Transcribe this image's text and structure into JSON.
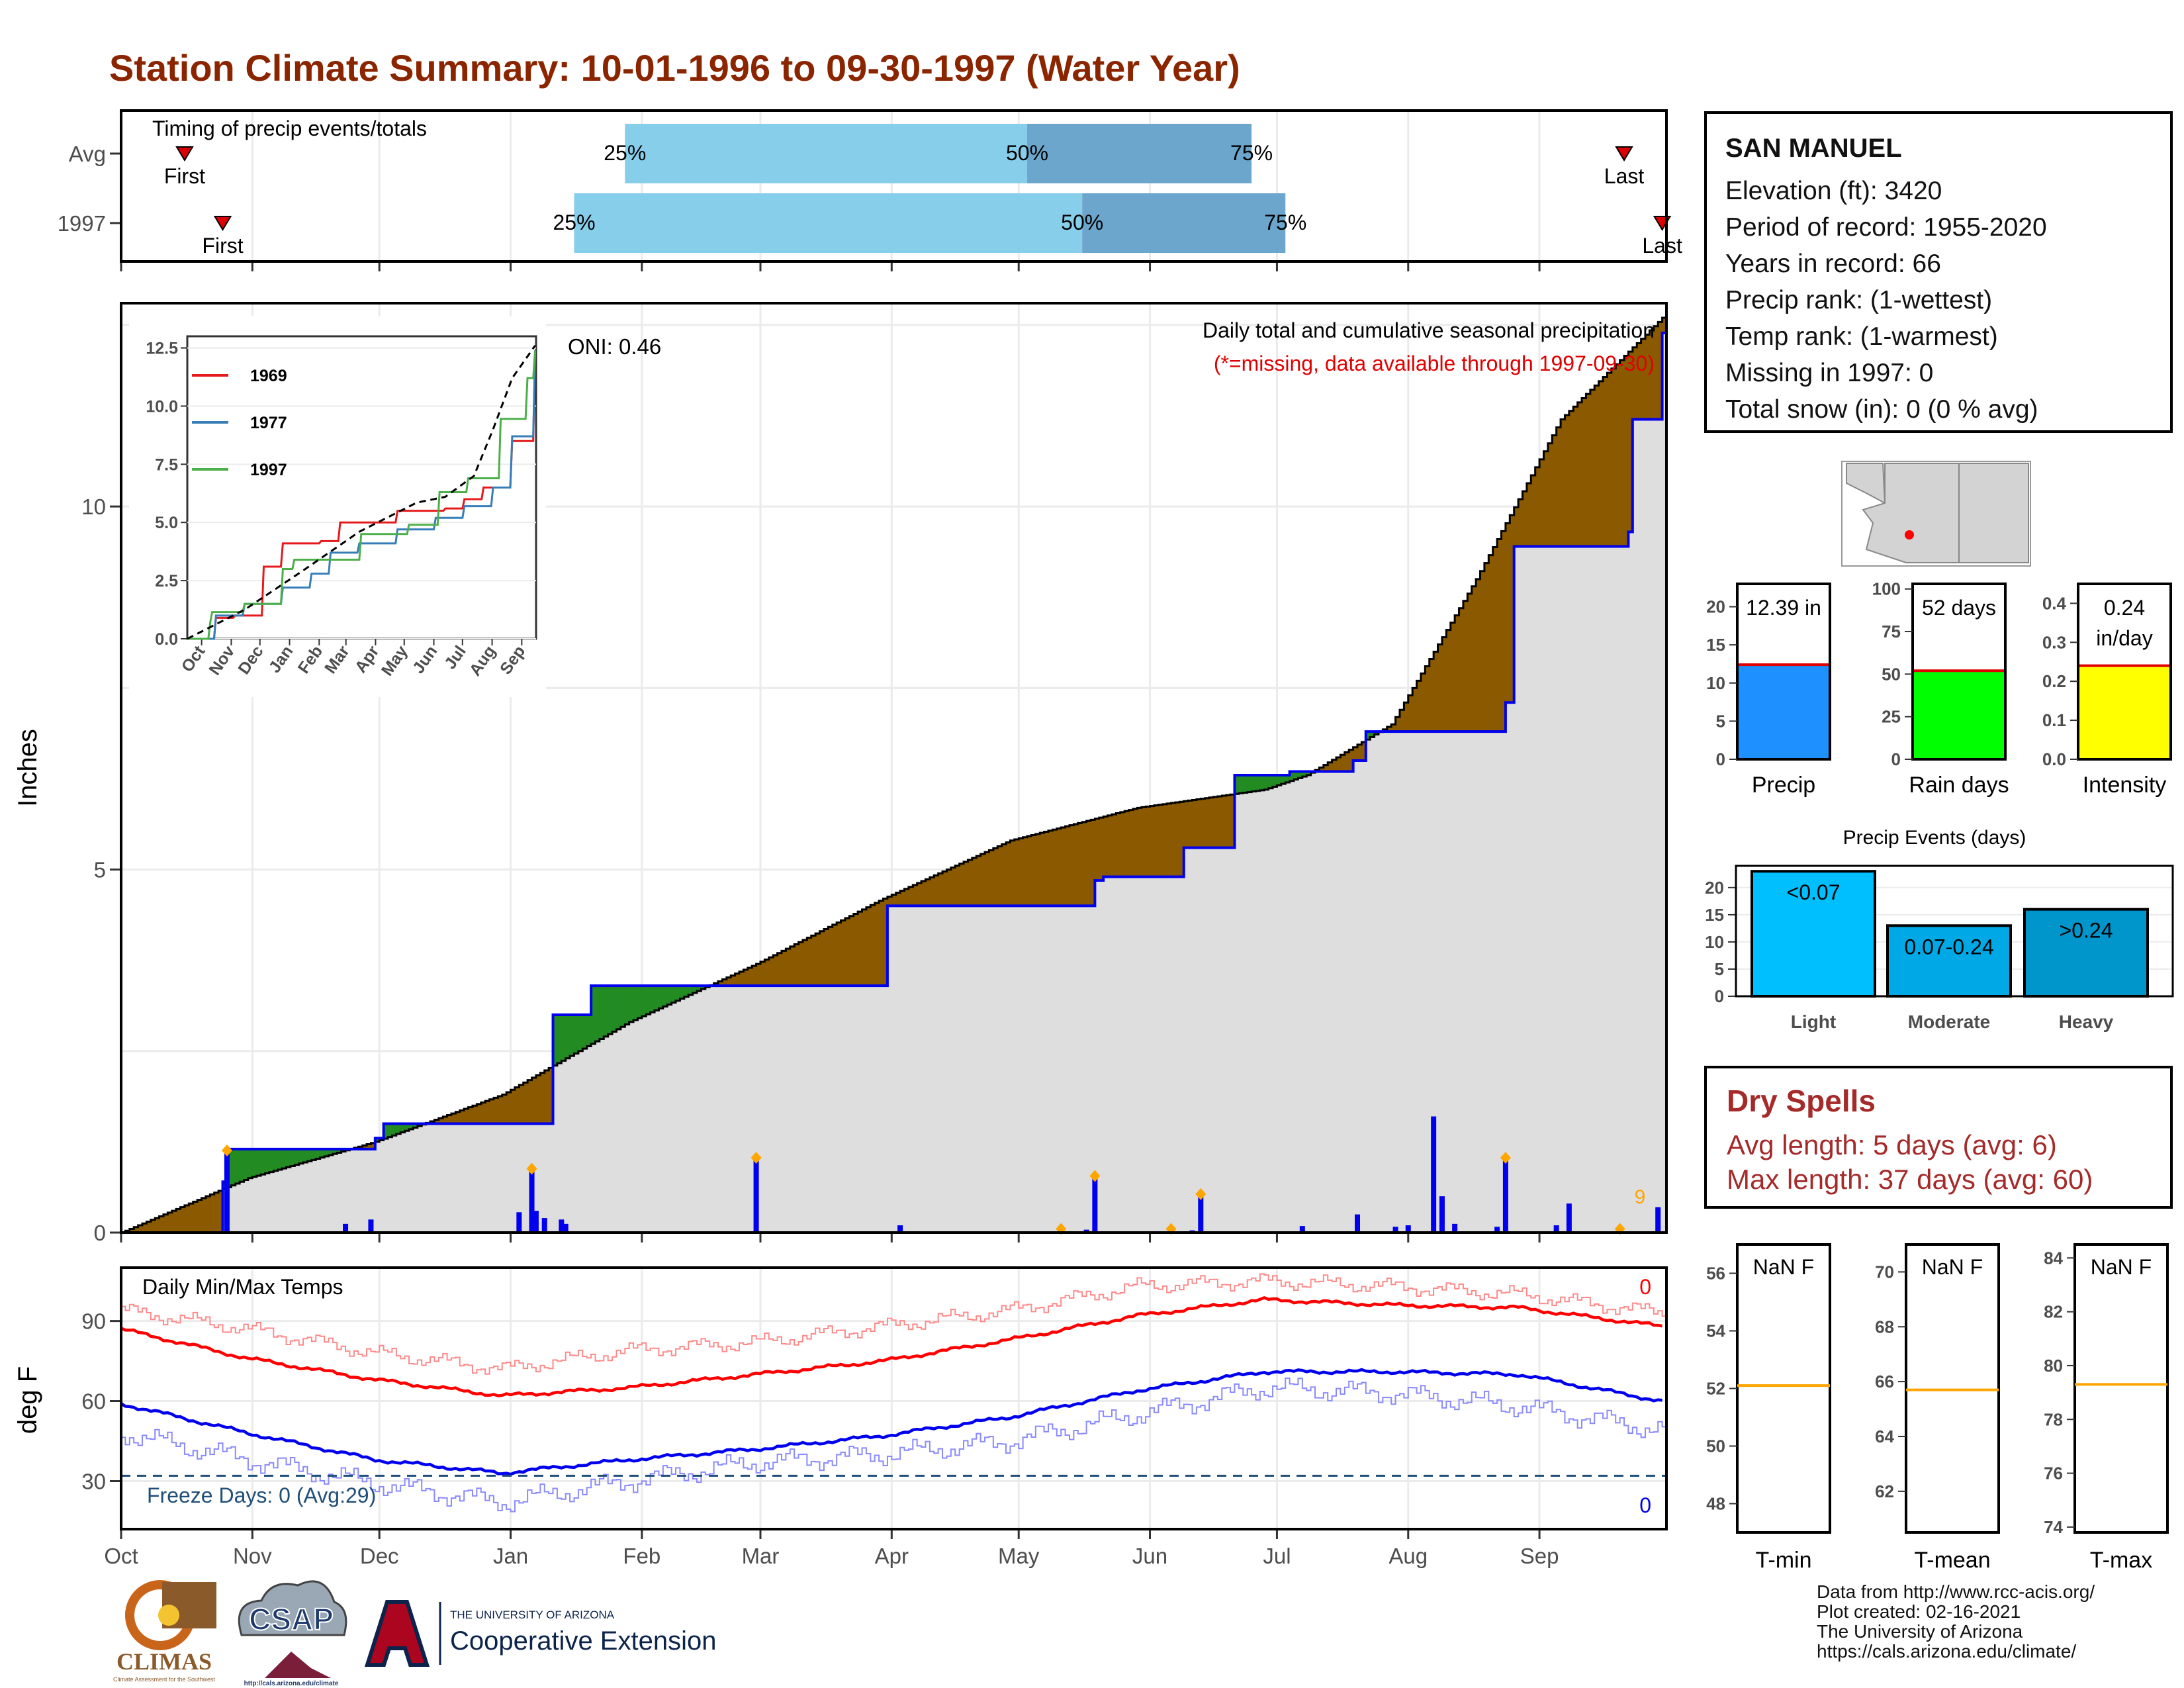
{
  "title": "Station Climate Summary: 10-01-1996 to 09-30-1997 (Water Year)",
  "colors": {
    "title": "#8B2500",
    "timing_light": "#87CEEB",
    "timing_dark": "#6CA6CD",
    "surplus": "#228B22",
    "deficit": "#8B5A00",
    "observed_line": "#0000EE",
    "avg_line": "#000000",
    "bars": "#0000EE",
    "highlight": "#FFA500",
    "tmax_avg": "#FF0000",
    "tmin_avg": "#0000EE",
    "freeze_line": "#1F4E79",
    "dry_text": "#A52A2A"
  },
  "timing": {
    "title": "Timing of precip events/totals",
    "rows": [
      {
        "label": "Avg",
        "first_day": 15,
        "last_day": 355,
        "q25": 119,
        "q50": 214,
        "q75": 267,
        "first_label": "First",
        "last_label": "Last",
        "q25_label": "25%",
        "q50_label": "50%",
        "q75_label": "75%"
      },
      {
        "label": "1997",
        "first_day": 24,
        "last_day": 364,
        "q25": 107,
        "q50": 227,
        "q75": 275,
        "first_label": "First",
        "last_label": "Last",
        "q25_label": "25%",
        "q50_label": "50%",
        "q75_label": "75%"
      }
    ]
  },
  "precip_panel": {
    "ylabel": "Inches",
    "y_ticks": [
      "0",
      "5",
      "10"
    ],
    "annotation_title": "Daily total and cumulative seasonal precipitation",
    "annotation_missing": "(*=missing, data available through 1997-09-30)",
    "oni_label": "ONI: 0.46",
    "edge_label": "9"
  },
  "months": [
    "Oct",
    "Nov",
    "Dec",
    "Jan",
    "Feb",
    "Mar",
    "Apr",
    "May",
    "Jun",
    "Jul",
    "Aug",
    "Sep"
  ],
  "chart_data": [
    {
      "type": "area",
      "title": "Daily total and cumulative seasonal precipitation",
      "ylabel": "Inches",
      "ylim": [
        0,
        12.8
      ],
      "x_unit": "day of water year (0 = Oct 1)",
      "series": [
        {
          "name": "observed cumulative",
          "x": [
            0,
            24,
            25,
            57,
            60,
            62,
            100,
            102,
            111,
            120,
            180,
            181,
            215,
            230,
            232,
            248,
            251,
            263,
            276,
            291,
            294,
            310,
            327,
            329,
            356,
            357,
            364
          ],
          "values": [
            0,
            0.7,
            1.15,
            1.15,
            1.3,
            1.5,
            1.5,
            3.0,
            3.4,
            3.4,
            3.4,
            4.5,
            4.5,
            4.85,
            4.9,
            4.9,
            5.3,
            6.3,
            6.35,
            6.5,
            6.9,
            6.9,
            7.3,
            9.45,
            9.65,
            11.2,
            12.39
          ]
        },
        {
          "name": "average cumulative",
          "x": [
            0,
            30,
            60,
            90,
            120,
            150,
            180,
            210,
            240,
            270,
            280,
            300,
            320,
            340,
            364
          ],
          "values": [
            0,
            0.75,
            1.25,
            1.9,
            2.9,
            3.7,
            4.6,
            5.4,
            5.85,
            6.1,
            6.3,
            7.0,
            9.0,
            11.2,
            12.6
          ]
        }
      ],
      "daily_bars": [
        {
          "day": 25,
          "value": 1.1
        },
        {
          "day": 53,
          "value": 0.12
        },
        {
          "day": 59,
          "value": 0.18
        },
        {
          "day": 94,
          "value": 0.28
        },
        {
          "day": 97,
          "value": 0.85
        },
        {
          "day": 98,
          "value": 0.3
        },
        {
          "day": 100,
          "value": 0.2
        },
        {
          "day": 104,
          "value": 0.18
        },
        {
          "day": 105,
          "value": 0.12
        },
        {
          "day": 150,
          "value": 1.0
        },
        {
          "day": 184,
          "value": 0.1
        },
        {
          "day": 228,
          "value": 0.04
        },
        {
          "day": 230,
          "value": 0.75
        },
        {
          "day": 253,
          "value": 0.03
        },
        {
          "day": 255,
          "value": 0.5
        },
        {
          "day": 279,
          "value": 0.09
        },
        {
          "day": 292,
          "value": 0.25
        },
        {
          "day": 301,
          "value": 0.08
        },
        {
          "day": 304,
          "value": 0.1
        },
        {
          "day": 310,
          "value": 1.6
        },
        {
          "day": 312,
          "value": 0.5
        },
        {
          "day": 315,
          "value": 0.12
        },
        {
          "day": 325,
          "value": 0.08
        },
        {
          "day": 327,
          "value": 1.0
        },
        {
          "day": 339,
          "value": 0.1
        },
        {
          "day": 342,
          "value": 0.4
        },
        {
          "day": 363,
          "value": 0.35
        }
      ],
      "markers": [
        25,
        97,
        150,
        222,
        230,
        248,
        255,
        327,
        354
      ]
    },
    {
      "type": "line",
      "title": "",
      "x_ticks": [
        "Oct",
        "Nov",
        "Dec",
        "Jan",
        "Feb",
        "Mar",
        "Apr",
        "May",
        "Jun",
        "Jul",
        "Aug",
        "Sep"
      ],
      "y_ticks": [
        "0.0",
        "2.5",
        "5.0",
        "7.5",
        "10.0",
        "12.5"
      ],
      "ylim": [
        0,
        13
      ],
      "series": [
        {
          "name": "1969",
          "color": "#E41A1C",
          "x": [
            0,
            30,
            50,
            80,
            100,
            140,
            160,
            220,
            270,
            290,
            310,
            340,
            364
          ],
          "values": [
            0,
            0.9,
            1.0,
            3.1,
            4.1,
            4.2,
            5.0,
            5.5,
            5.6,
            6.0,
            6.5,
            8.5,
            12.3
          ]
        },
        {
          "name": "1977",
          "color": "#377EB8",
          "x": [
            0,
            30,
            60,
            100,
            130,
            150,
            180,
            220,
            260,
            290,
            320,
            340,
            364
          ],
          "values": [
            0,
            1.0,
            1.5,
            2.2,
            2.8,
            3.7,
            4.1,
            4.7,
            5.2,
            5.7,
            6.5,
            8.7,
            12.4
          ]
        },
        {
          "name": "1997",
          "color": "#4DAF4A",
          "x": [
            0,
            24,
            25,
            60,
            100,
            111,
            181,
            232,
            263,
            294,
            327,
            356,
            364
          ],
          "values": [
            0,
            0.7,
            1.15,
            1.5,
            3.0,
            3.4,
            4.5,
            4.9,
            6.3,
            6.9,
            9.45,
            11.2,
            12.39
          ]
        },
        {
          "name": "average",
          "color": "#000000",
          "x": [
            0,
            60,
            120,
            180,
            240,
            270,
            300,
            320,
            340,
            364
          ],
          "values": [
            0,
            1.25,
            2.9,
            4.6,
            5.85,
            6.1,
            7.0,
            9.0,
            11.2,
            12.6
          ]
        }
      ]
    },
    {
      "type": "line",
      "title": "Daily Min/Max Temps",
      "ylabel": "deg F",
      "y_ticks": [
        "30",
        "60",
        "90"
      ],
      "ylim": [
        12,
        110
      ],
      "freeze_threshold": 32,
      "freeze_label": "Freeze Days: 0 (Avg:29)",
      "tmax_count_label": "0",
      "tmin_count_label": "0",
      "series": [
        {
          "name": "avg max",
          "x": [
            0,
            30,
            60,
            90,
            120,
            150,
            180,
            210,
            240,
            270,
            300,
            330,
            364
          ],
          "values": [
            87,
            76,
            68,
            62,
            65,
            70,
            75,
            83,
            92,
            98,
            96,
            95,
            88
          ]
        },
        {
          "name": "avg min",
          "x": [
            0,
            30,
            60,
            90,
            120,
            150,
            180,
            210,
            240,
            270,
            300,
            330,
            364
          ],
          "values": [
            59,
            48,
            38,
            33,
            38,
            42,
            47,
            54,
            64,
            71,
            71,
            70,
            60
          ]
        },
        {
          "name": "obs max",
          "x": [
            0,
            30,
            60,
            90,
            120,
            150,
            180,
            210,
            240,
            270,
            300,
            330,
            364
          ],
          "values": [
            94,
            87,
            78,
            72,
            79,
            82,
            88,
            94,
            103,
            105,
            103,
            100,
            93
          ]
        },
        {
          "name": "obs min",
          "x": [
            0,
            30,
            60,
            90,
            120,
            150,
            180,
            210,
            240,
            270,
            300,
            330,
            364
          ],
          "values": [
            48,
            38,
            29,
            22,
            30,
            37,
            40,
            45,
            55,
            65,
            63,
            58,
            49
          ]
        }
      ]
    },
    {
      "type": "bar",
      "title": "",
      "categories": [
        "Precip",
        "Rain days",
        "Intensity"
      ],
      "values": [
        12.39,
        52,
        0.24
      ],
      "labels": [
        "12.39 in",
        "52 days",
        "0.24 in/day"
      ],
      "ylims": [
        [
          0,
          23
        ],
        [
          0,
          103
        ],
        [
          0,
          0.45
        ]
      ],
      "y_ticks": [
        [
          "0",
          "5",
          "10",
          "15",
          "20"
        ],
        [
          "0",
          "25",
          "50",
          "75",
          "100"
        ],
        [
          "0.0",
          "0.1",
          "0.2",
          "0.3",
          "0.4"
        ]
      ],
      "averages": [
        12.4,
        52,
        0.24
      ],
      "bar_colors": [
        "#1E90FF",
        "#00FF00",
        "#FFFF00"
      ]
    },
    {
      "type": "bar",
      "title": "Precip Events (days)",
      "categories": [
        "Light",
        "Moderate",
        "Heavy"
      ],
      "labels": [
        "<0.07",
        "0.07-0.24",
        ">0.24"
      ],
      "values": [
        23,
        13,
        16
      ],
      "ylim": [
        0,
        24
      ],
      "y_ticks": [
        "0",
        "5",
        "10",
        "15",
        "20"
      ],
      "bar_colors": [
        "#00BFFF",
        "#00A9E6",
        "#0096CC"
      ]
    },
    {
      "type": "line",
      "title": "",
      "categories": [
        "T-min",
        "T-mean",
        "T-max"
      ],
      "labels": [
        "NaN F",
        "NaN F",
        "NaN F"
      ],
      "averages": [
        52.1,
        65.7,
        79.3
      ],
      "ylims": [
        [
          47,
          57
        ],
        [
          60.5,
          71
        ],
        [
          73.8,
          84.5
        ]
      ],
      "y_ticks": [
        [
          "48",
          "50",
          "52",
          "54",
          "56"
        ],
        [
          "62",
          "64",
          "66",
          "68",
          "70"
        ],
        [
          "74",
          "76",
          "78",
          "80",
          "82",
          "84"
        ]
      ]
    }
  ],
  "station": {
    "name": "SAN MANUEL",
    "lines": [
      "Elevation (ft): 3420",
      "Period of record: 1955-2020",
      "Years in record: 66",
      "Precip rank:  (1-wettest)",
      "Temp rank:  (1-warmest)",
      "Missing in 1997: 0",
      "Total snow (in): 0 (0 % avg)"
    ]
  },
  "dry_spells": {
    "title": "Dry Spells",
    "avg_length": "Avg length: 5 days (avg: 6)",
    "max_length": "Max length: 37 days (avg: 60)"
  },
  "footer": {
    "lines": [
      "Data from http://www.rcc-acis.org/",
      "Plot created: 02-16-2021",
      "The University of Arizona",
      "https://cals.arizona.edu/climate/"
    ],
    "logos": {
      "climas": "CLIMAS",
      "climas_sub": "Climate Assessment for the Southwest",
      "csap": "CSAP",
      "csap_url": "http://cals.arizona.edu/climate",
      "ua_small": "THE UNIVERSITY OF ARIZONA",
      "ua_big": "Cooperative Extension"
    }
  }
}
